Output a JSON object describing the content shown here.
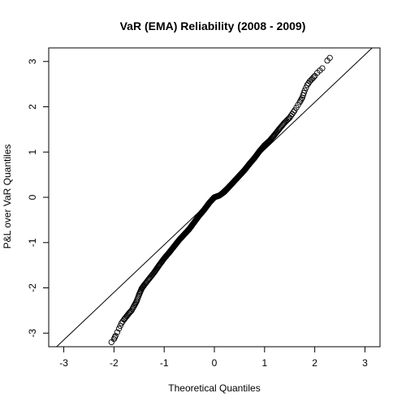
{
  "chart_data": {
    "type": "scatter",
    "title": "VaR (EMA) Reliability (2008 - 2009)",
    "xlabel": "Theoretical Quantiles",
    "ylabel": "P&L over VaR Quantiles",
    "xlim": [
      -3.3,
      3.3
    ],
    "ylim": [
      -3.3,
      3.3
    ],
    "xticks": [
      "-3",
      "-2",
      "-1",
      "0",
      "1",
      "2",
      "3"
    ],
    "yticks": [
      "-3",
      "-2",
      "-1",
      "0",
      "1",
      "2",
      "3"
    ],
    "grid": false,
    "legend": "none",
    "reference_line": {
      "intercept": 0.0,
      "slope": 1.05
    },
    "points_key": [
      [
        -2.05,
        -3.2
      ],
      [
        -2.0,
        -3.13
      ],
      [
        -1.97,
        -3.06
      ],
      [
        -1.9,
        -2.9
      ],
      [
        -1.85,
        -2.78
      ],
      [
        -1.8,
        -2.7
      ],
      [
        -1.75,
        -2.63
      ],
      [
        -1.7,
        -2.56
      ],
      [
        -1.65,
        -2.5
      ],
      [
        -1.6,
        -2.4
      ],
      [
        -1.55,
        -2.3
      ],
      [
        -1.5,
        -2.15
      ],
      [
        -1.45,
        -2.02
      ],
      [
        -1.4,
        -1.94
      ],
      [
        -1.3,
        -1.8
      ],
      [
        -1.2,
        -1.66
      ],
      [
        -1.1,
        -1.5
      ],
      [
        -1.0,
        -1.35
      ],
      [
        -0.9,
        -1.22
      ],
      [
        -0.8,
        -1.08
      ],
      [
        -0.7,
        -0.94
      ],
      [
        -0.6,
        -0.82
      ],
      [
        -0.5,
        -0.7
      ],
      [
        -0.4,
        -0.55
      ],
      [
        -0.3,
        -0.4
      ],
      [
        -0.2,
        -0.27
      ],
      [
        -0.1,
        -0.12
      ],
      [
        0.0,
        0.0
      ],
      [
        0.1,
        0.04
      ],
      [
        0.2,
        0.12
      ],
      [
        0.3,
        0.24
      ],
      [
        0.4,
        0.36
      ],
      [
        0.5,
        0.48
      ],
      [
        0.6,
        0.6
      ],
      [
        0.7,
        0.74
      ],
      [
        0.8,
        0.87
      ],
      [
        0.9,
        1.02
      ],
      [
        1.0,
        1.15
      ],
      [
        1.1,
        1.25
      ],
      [
        1.2,
        1.38
      ],
      [
        1.3,
        1.52
      ],
      [
        1.4,
        1.65
      ],
      [
        1.5,
        1.76
      ],
      [
        1.6,
        1.92
      ],
      [
        1.7,
        2.1
      ],
      [
        1.75,
        2.2
      ],
      [
        1.8,
        2.36
      ],
      [
        1.85,
        2.48
      ],
      [
        1.9,
        2.56
      ],
      [
        1.95,
        2.62
      ],
      [
        2.0,
        2.68
      ],
      [
        2.05,
        2.75
      ],
      [
        2.1,
        2.8
      ],
      [
        2.15,
        2.85
      ],
      [
        2.25,
        3.02
      ],
      [
        2.3,
        3.08
      ]
    ]
  }
}
